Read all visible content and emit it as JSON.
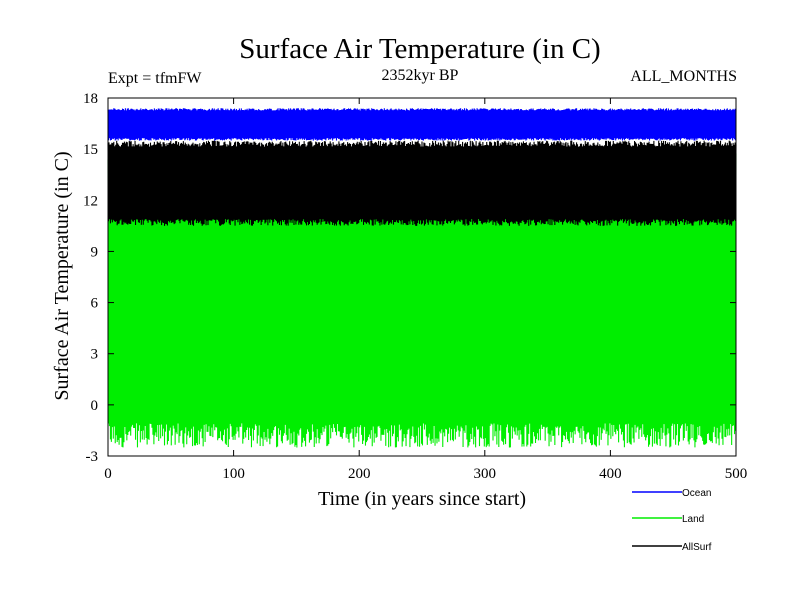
{
  "chart_data": {
    "type": "line",
    "title": "Surface Air Temperature (in C)",
    "subtitle": "2352kyr BP",
    "annotation_left": "Expt = tfmFW",
    "annotation_right": "ALL_MONTHS",
    "xlabel": "Time (in years since start)",
    "ylabel": "Surface Air Temperature (in C)",
    "xlim": [
      0,
      500
    ],
    "ylim": [
      -3,
      18
    ],
    "xticks": [
      0,
      100,
      200,
      300,
      400,
      500
    ],
    "yticks": [
      -3,
      0,
      3,
      6,
      9,
      12,
      15,
      18
    ],
    "legend_position": "bottom-right",
    "series": [
      {
        "name": "Ocean",
        "color": "#0000ff",
        "min": 15.5,
        "max": 17.4,
        "note": "monthly values, seasonal oscillation"
      },
      {
        "name": "Land",
        "color": "#00ee00",
        "min": -2.5,
        "max": 15.2,
        "note": "monthly values, seasonal oscillation"
      },
      {
        "name": "AllSurf",
        "color": "#000000",
        "min": 10.5,
        "max": 15.5,
        "note": "monthly values, seasonal oscillation"
      }
    ]
  }
}
